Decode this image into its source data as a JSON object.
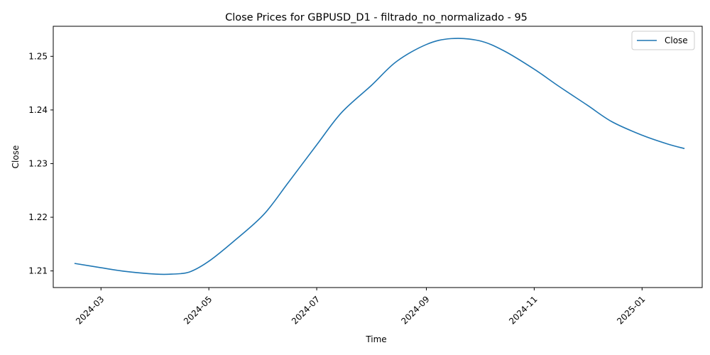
{
  "chart_data": {
    "type": "line",
    "title": "Close Prices for GBPUSD_D1 - filtrado_no_normalizado - 95",
    "xlabel": "Time",
    "ylabel": "Close",
    "x_ticks": [
      "2024-03",
      "2024-05",
      "2024-07",
      "2024-09",
      "2024-11",
      "2025-01"
    ],
    "y_ticks": [
      "1.21",
      "1.22",
      "1.23",
      "1.24",
      "1.25"
    ],
    "ylim": [
      1.2069,
      1.2556
    ],
    "xlim": [
      "2024-02-03",
      "2025-02-04"
    ],
    "grid": false,
    "legend": {
      "position": "top-right",
      "entries": [
        "Close"
      ]
    },
    "colors": {
      "line": "#1f77b4"
    },
    "series": [
      {
        "name": "Close",
        "x": [
          "2024-02-15",
          "2024-03-01",
          "2024-03-15",
          "2024-04-01",
          "2024-04-10",
          "2024-04-20",
          "2024-05-01",
          "2024-05-15",
          "2024-06-01",
          "2024-06-15",
          "2024-07-01",
          "2024-07-15",
          "2024-08-01",
          "2024-08-15",
          "2024-09-01",
          "2024-09-15",
          "2024-10-01",
          "2024-10-15",
          "2024-11-01",
          "2024-11-15",
          "2024-12-01",
          "2024-12-15",
          "2025-01-01",
          "2025-01-15",
          "2025-01-25"
        ],
        "values": [
          1.2114,
          1.2106,
          1.2099,
          1.2094,
          1.2094,
          1.2098,
          1.2118,
          1.2155,
          1.2205,
          1.2265,
          1.2335,
          1.2395,
          1.2446,
          1.249,
          1.2522,
          1.2533,
          1.2529,
          1.251,
          1.2476,
          1.2444,
          1.2409,
          1.2378,
          1.2353,
          1.2337,
          1.2328
        ]
      }
    ]
  }
}
